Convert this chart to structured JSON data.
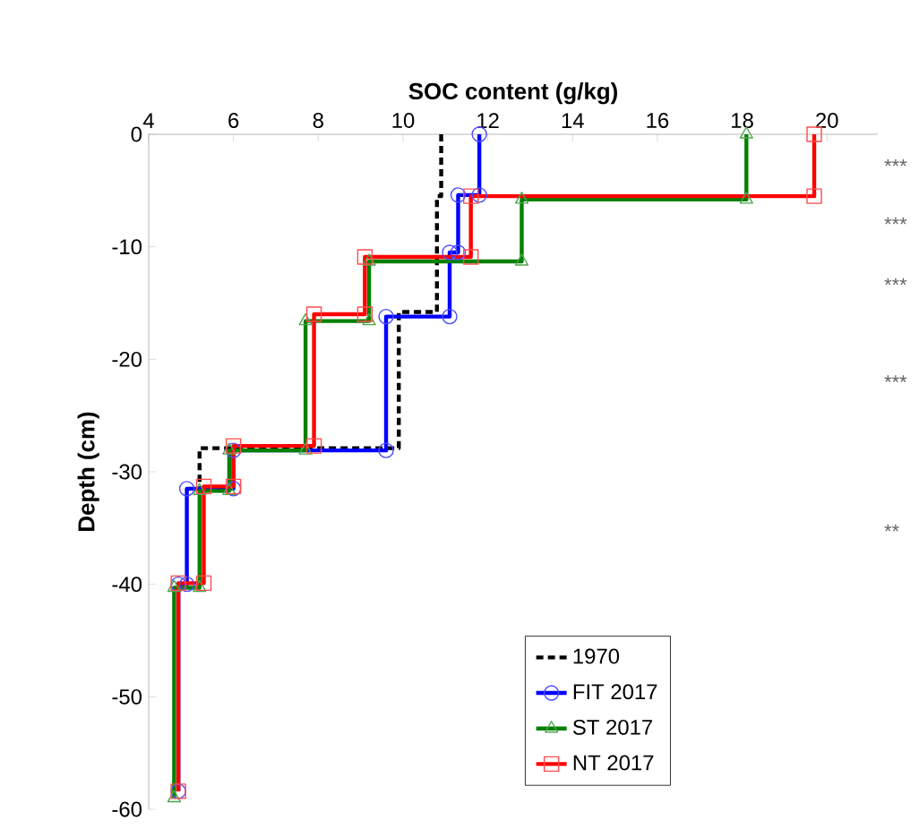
{
  "chart_data": {
    "type": "line",
    "xlabel": "SOC content (g/kg)",
    "ylabel": "Depth (cm)",
    "xlim": [
      4,
      21.2
    ],
    "ylim": [
      -60,
      0
    ],
    "xticks": [
      4,
      6,
      8,
      10,
      12,
      14,
      16,
      18,
      20
    ],
    "yticks": [
      -60,
      -50,
      -40,
      -30,
      -20,
      -10,
      0
    ],
    "grid": false,
    "legend": "bottom right",
    "series": [
      {
        "name": "1970",
        "color": "#000000",
        "marker": "none",
        "line_style": "dashed",
        "x": [
          10.9,
          10.9,
          10.8,
          10.8,
          9.9,
          9.9,
          5.2,
          5.2
        ],
        "values": [
          0,
          -5.5,
          -5.5,
          -15.8,
          -15.8,
          -27.9,
          -27.9,
          -31.5
        ]
      },
      {
        "name": "FIT 2017",
        "color": "#0000ff",
        "marker": "circle",
        "line_style": "solid",
        "x": [
          11.8,
          11.8,
          11.3,
          11.3,
          11.1,
          11.1,
          9.6,
          9.6,
          6.0,
          6.0,
          4.9,
          4.9,
          4.7,
          4.7
        ],
        "values": [
          0,
          -5.4,
          -5.4,
          -10.5,
          -10.5,
          -16.2,
          -16.2,
          -28.1,
          -28.1,
          -31.5,
          -31.5,
          -40.0,
          -40.0,
          -58.4
        ]
      },
      {
        "name": "ST 2017",
        "color": "#008000",
        "marker": "triangle",
        "line_style": "solid",
        "x": [
          18.1,
          18.1,
          12.8,
          12.8,
          9.2,
          9.2,
          7.7,
          7.7,
          5.9,
          5.9,
          5.2,
          5.2,
          4.6,
          4.6
        ],
        "values": [
          0,
          -5.8,
          -5.8,
          -11.3,
          -11.3,
          -16.6,
          -16.6,
          -28.1,
          -28.1,
          -31.7,
          -31.7,
          -40.3,
          -40.3,
          -59.0
        ]
      },
      {
        "name": "NT 2017",
        "color": "#ff0000",
        "marker": "square",
        "line_style": "solid",
        "x": [
          19.7,
          19.7,
          11.6,
          11.6,
          9.1,
          9.1,
          7.9,
          7.9,
          6.0,
          6.0,
          5.3,
          5.3,
          4.7,
          4.7
        ],
        "values": [
          0,
          -5.5,
          -5.5,
          -10.9,
          -10.9,
          -16.0,
          -16.0,
          -27.7,
          -27.7,
          -31.3,
          -31.3,
          -39.9,
          -39.9,
          -58.4
        ]
      }
    ],
    "annotations": [
      "***",
      "***",
      "***",
      "***",
      "**"
    ]
  }
}
